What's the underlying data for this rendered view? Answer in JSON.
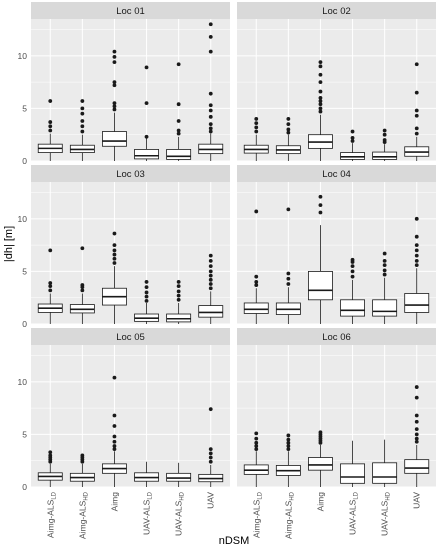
{
  "chart_data": {
    "type": "boxplot",
    "xlabel": "nDSM",
    "ylabel": "|dh| [m]",
    "ylim": [
      0,
      13.5
    ],
    "yticks": [
      0,
      5,
      10
    ],
    "grid": true,
    "legend": "none",
    "colors": {
      "panel_bg": "#ebebeb",
      "strip_bg": "#d9d9d9",
      "grid": "#ffffff",
      "box_fill": "#ffffff",
      "line": "#1a1a1a",
      "outlier": "#1a1a1a"
    },
    "categories": [
      {
        "label": "Aimg-ALS",
        "sub": "LD"
      },
      {
        "label": "Aimg-ALS",
        "sub": "HD"
      },
      {
        "label": "Aimg",
        "sub": ""
      },
      {
        "label": "UAV-ALS",
        "sub": "LD"
      },
      {
        "label": "UAV-ALS",
        "sub": "HD"
      },
      {
        "label": "UAV",
        "sub": ""
      }
    ],
    "panels": [
      {
        "title": "Loc 01",
        "boxes": [
          {
            "lw": 0,
            "q1": 0.8,
            "med": 1.2,
            "q3": 1.6,
            "uw": 2.6,
            "out": [
              2.9,
              3.3,
              3.7,
              5.7
            ]
          },
          {
            "lw": 0,
            "q1": 0.8,
            "med": 1.1,
            "q3": 1.5,
            "uw": 2.5,
            "out": [
              2.8,
              3.3,
              3.8,
              4.5,
              5.0,
              5.7
            ]
          },
          {
            "lw": 0,
            "q1": 1.4,
            "med": 1.9,
            "q3": 2.8,
            "uw": 4.6,
            "out": [
              4.9,
              5.2,
              5.5,
              7.2,
              7.5,
              9.4,
              9.9,
              10.4
            ]
          },
          {
            "lw": 0,
            "q1": 0.2,
            "med": 0.5,
            "q3": 1.1,
            "uw": 2.2,
            "out": [
              2.3,
              5.5,
              8.9
            ]
          },
          {
            "lw": 0,
            "q1": 0.15,
            "med": 0.45,
            "q3": 1.1,
            "uw": 2.3,
            "out": [
              2.6,
              2.9,
              3.8,
              5.4,
              9.2
            ]
          },
          {
            "lw": 0,
            "q1": 0.7,
            "med": 1.1,
            "q3": 1.6,
            "uw": 2.6,
            "out": [
              2.8,
              3.1,
              3.5,
              4.2,
              4.8,
              5.3,
              6.4,
              10.4,
              11.8,
              13.0
            ]
          }
        ]
      },
      {
        "title": "Loc 02",
        "boxes": [
          {
            "lw": 0,
            "q1": 0.75,
            "med": 1.1,
            "q3": 1.5,
            "uw": 2.5,
            "out": [
              2.8,
              3.2,
              3.6,
              4.0
            ]
          },
          {
            "lw": 0,
            "q1": 0.7,
            "med": 1.05,
            "q3": 1.45,
            "uw": 2.5,
            "out": [
              2.7,
              3.0,
              3.5,
              4.0
            ]
          },
          {
            "lw": 0,
            "q1": 1.2,
            "med": 1.8,
            "q3": 2.5,
            "uw": 4.4,
            "out": [
              4.7,
              5.0,
              5.4,
              5.7,
              6.0,
              6.6,
              7.5,
              8.2,
              9.0,
              9.4
            ]
          },
          {
            "lw": 0,
            "q1": 0.15,
            "med": 0.4,
            "q3": 0.8,
            "uw": 1.7,
            "out": [
              1.9,
              2.2,
              2.8
            ]
          },
          {
            "lw": 0,
            "q1": 0.15,
            "med": 0.4,
            "q3": 0.85,
            "uw": 1.6,
            "out": [
              1.8,
              2.0,
              2.5,
              2.9
            ]
          },
          {
            "lw": 0,
            "q1": 0.45,
            "med": 0.85,
            "q3": 1.35,
            "uw": 2.3,
            "out": [
              2.6,
              3.1,
              4.3,
              4.8,
              6.5,
              9.2
            ]
          }
        ]
      },
      {
        "title": "Loc 03",
        "boxes": [
          {
            "lw": 0,
            "q1": 1.1,
            "med": 1.5,
            "q3": 1.9,
            "uw": 2.9,
            "out": [
              3.2,
              3.6,
              3.9,
              7.0
            ]
          },
          {
            "lw": 0,
            "q1": 1.05,
            "med": 1.4,
            "q3": 1.85,
            "uw": 2.9,
            "out": [
              3.2,
              3.5,
              3.7,
              7.2
            ]
          },
          {
            "lw": 0,
            "q1": 1.8,
            "med": 2.6,
            "q3": 3.4,
            "uw": 5.5,
            "out": [
              5.8,
              6.2,
              6.6,
              7.0,
              7.5,
              8.6
            ]
          },
          {
            "lw": 0,
            "q1": 0.25,
            "med": 0.55,
            "q3": 0.95,
            "uw": 2.0,
            "out": [
              2.2,
              2.6,
              3.0,
              3.5,
              4.0
            ]
          },
          {
            "lw": 0,
            "q1": 0.2,
            "med": 0.5,
            "q3": 0.95,
            "uw": 2.0,
            "out": [
              2.3,
              2.7,
              3.1,
              3.6,
              4.0
            ]
          },
          {
            "lw": 0,
            "q1": 0.65,
            "med": 1.1,
            "q3": 1.75,
            "uw": 3.1,
            "out": [
              3.4,
              3.8,
              4.2,
              4.6,
              5.0,
              5.5,
              6.0,
              6.5
            ]
          }
        ]
      },
      {
        "title": "Loc 04",
        "boxes": [
          {
            "lw": 0,
            "q1": 1.0,
            "med": 1.4,
            "q3": 2.0,
            "uw": 3.4,
            "out": [
              3.7,
              4.0,
              4.5,
              10.7
            ]
          },
          {
            "lw": 0,
            "q1": 0.9,
            "med": 1.4,
            "q3": 2.0,
            "uw": 3.5,
            "out": [
              3.8,
              4.3,
              4.8,
              10.9
            ]
          },
          {
            "lw": 0,
            "q1": 2.3,
            "med": 3.2,
            "q3": 5.0,
            "uw": 9.4,
            "out": [
              10.6,
              11.3,
              12.1
            ]
          },
          {
            "lw": 0,
            "q1": 0.75,
            "med": 1.3,
            "q3": 2.3,
            "uw": 4.2,
            "out": [
              4.5,
              5.0,
              5.5,
              5.9,
              6.1
            ]
          },
          {
            "lw": 0,
            "q1": 0.75,
            "med": 1.2,
            "q3": 2.3,
            "uw": 4.4,
            "out": [
              4.7,
              5.1,
              5.6,
              6.0,
              6.7
            ]
          },
          {
            "lw": 0,
            "q1": 1.1,
            "med": 1.8,
            "q3": 2.9,
            "uw": 5.3,
            "out": [
              5.6,
              6.0,
              6.5,
              7.0,
              7.5,
              8.3,
              10.0
            ]
          }
        ]
      },
      {
        "title": "Loc 05",
        "boxes": [
          {
            "lw": 0,
            "q1": 0.65,
            "med": 1.0,
            "q3": 1.35,
            "uw": 2.2,
            "out": [
              2.4,
              2.6,
              2.8,
              3.0,
              3.3
            ]
          },
          {
            "lw": 0,
            "q1": 0.55,
            "med": 0.9,
            "q3": 1.3,
            "uw": 2.2,
            "out": [
              2.4,
              2.6,
              2.8,
              3.0
            ]
          },
          {
            "lw": 0,
            "q1": 1.3,
            "med": 1.75,
            "q3": 2.2,
            "uw": 3.4,
            "out": [
              3.6,
              3.9,
              4.3,
              4.8,
              5.8,
              6.8,
              10.4
            ]
          },
          {
            "lw": 0,
            "q1": 0.55,
            "med": 0.9,
            "q3": 1.35,
            "uw": 2.4,
            "out": []
          },
          {
            "lw": 0,
            "q1": 0.55,
            "med": 0.85,
            "q3": 1.3,
            "uw": 2.3,
            "out": []
          },
          {
            "lw": 0,
            "q1": 0.5,
            "med": 0.8,
            "q3": 1.2,
            "uw": 2.1,
            "out": [
              2.4,
              2.8,
              3.2,
              3.6,
              7.4
            ]
          }
        ]
      },
      {
        "title": "Loc 06",
        "boxes": [
          {
            "lw": 0,
            "q1": 1.2,
            "med": 1.6,
            "q3": 2.1,
            "uw": 3.4,
            "out": [
              3.6,
              3.9,
              4.2,
              4.6,
              5.1
            ]
          },
          {
            "lw": 0,
            "q1": 1.1,
            "med": 1.55,
            "q3": 2.05,
            "uw": 3.4,
            "out": [
              3.6,
              3.9,
              4.2,
              4.5,
              4.9
            ]
          },
          {
            "lw": 0,
            "q1": 1.6,
            "med": 2.1,
            "q3": 2.8,
            "uw": 4.0,
            "out": [
              4.2,
              4.4,
              4.6,
              4.8,
              5.0,
              5.2
            ]
          },
          {
            "lw": 0,
            "q1": 0.35,
            "med": 0.95,
            "q3": 2.2,
            "uw": 4.4,
            "out": []
          },
          {
            "lw": 0,
            "q1": 0.35,
            "med": 0.95,
            "q3": 2.3,
            "uw": 4.5,
            "out": []
          },
          {
            "lw": 0,
            "q1": 1.3,
            "med": 1.8,
            "q3": 2.6,
            "uw": 4.0,
            "out": [
              4.3,
              4.6,
              5.0,
              5.5,
              6.2,
              6.8,
              8.5,
              9.5
            ]
          }
        ]
      }
    ]
  }
}
